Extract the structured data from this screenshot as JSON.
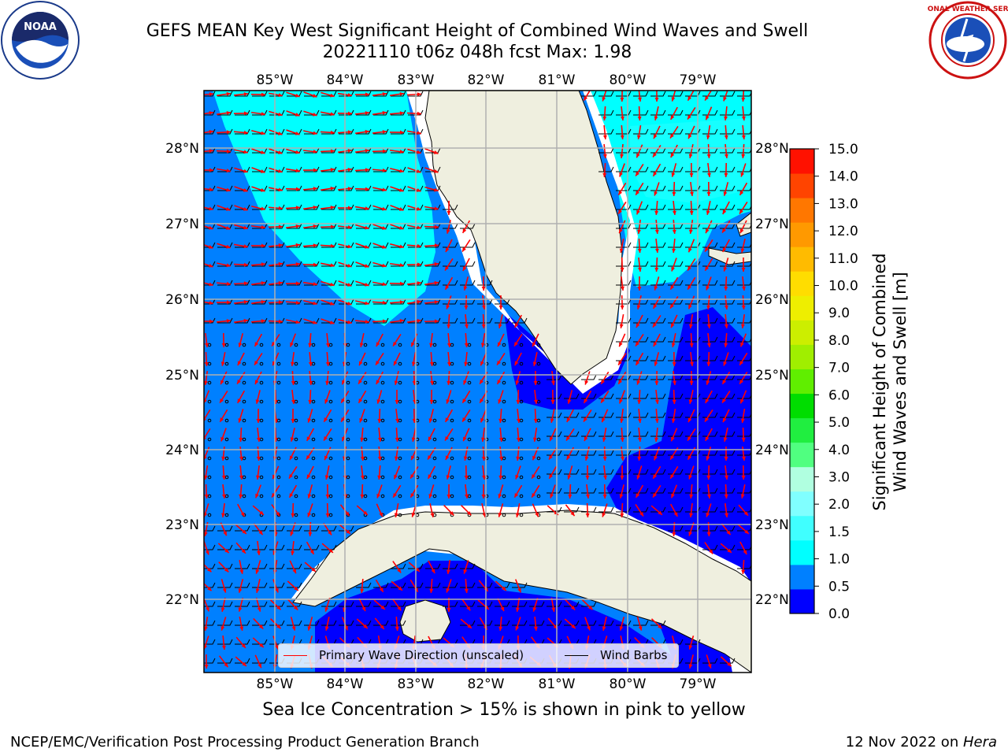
{
  "header": {
    "title_line1": "GEFS MEAN Key West Significant Height of Combined Wind Waves and Swell",
    "title_line2": "20221110 t06z 048h fcst    Max: 1.98"
  },
  "logos": {
    "noaa": {
      "icon": "noaa-logo",
      "text": "NOAA",
      "ring_text": "NATIONAL OCEANIC AND ATMOSPHERIC ADMINISTRATION · U.S. DEPARTMENT OF COMMERCE"
    },
    "nws": {
      "icon": "nws-logo",
      "ring_text": "NATIONAL WEATHER SERVICE"
    }
  },
  "map": {
    "lon_labels": [
      "85°W",
      "84°W",
      "83°W",
      "82°W",
      "81°W",
      "80°W",
      "79°W"
    ],
    "lat_labels": [
      "28°N",
      "27°N",
      "26°N",
      "25°N",
      "24°N",
      "23°N",
      "22°N"
    ],
    "legend": {
      "wave_direction_label": "Primary Wave Direction (unscaled)",
      "wind_barbs_label": "Wind Barbs",
      "wave_direction_color": "#ff0000",
      "wind_barbs_color": "#000000"
    },
    "colors": {
      "land": "#efefdf",
      "level_0_0_5": "#0000ff",
      "level_0_5_1_0": "#0080ff",
      "level_1_0_1_5": "#00ffff",
      "level_1_5_2_0": "#40ffff"
    }
  },
  "colorbar": {
    "ticks": [
      "15.0",
      "14.0",
      "13.0",
      "12.0",
      "11.0",
      "10.0",
      "9.0",
      "8.0",
      "7.0",
      "6.0",
      "5.0",
      "4.0",
      "3.0",
      "2.0",
      "1.5",
      "1.0",
      "0.5",
      "0.0"
    ],
    "colors": [
      "#0000ff",
      "#0080ff",
      "#00ffff",
      "#40ffff",
      "#80ffff",
      "#b0ffe0",
      "#50ff80",
      "#20ee40",
      "#00dd00",
      "#60ee00",
      "#a0ee00",
      "#ccee00",
      "#eeee00",
      "#ffdd00",
      "#ffbb00",
      "#ff9900",
      "#ff7700",
      "#ff4400",
      "#ff1100"
    ],
    "label_line1": "Significant Height of Combined",
    "label_line2": "Wind Waves and Swell [m]"
  },
  "note": "Sea Ice Concentration > 15% is shown in pink to yellow",
  "footer": {
    "left": "NCEP/EMC/Verification Post Processing Product Generation Branch",
    "right_date": "12 Nov 2022 on ",
    "right_host": "Hera"
  }
}
